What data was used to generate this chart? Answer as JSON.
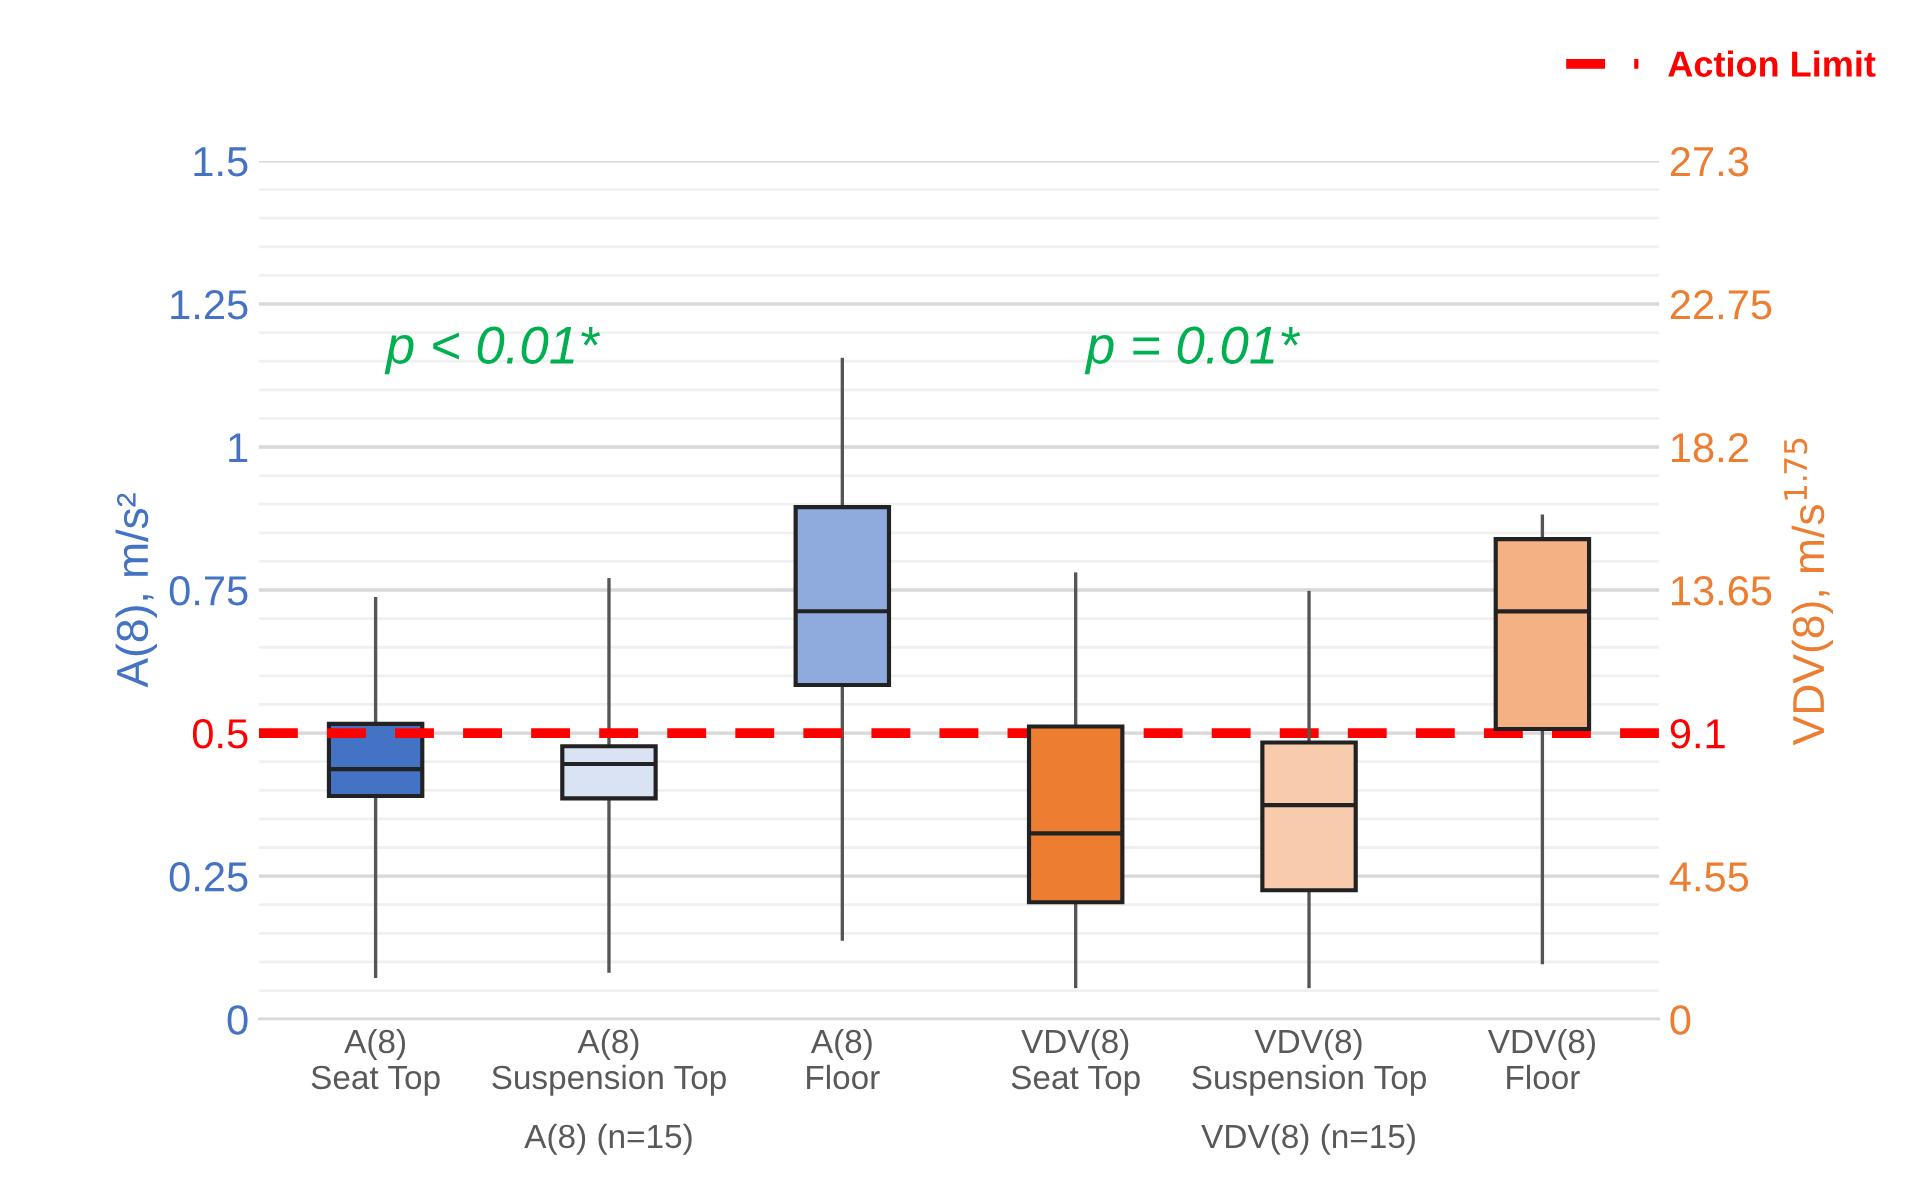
{
  "chart_data": {
    "type": "box",
    "categories": [
      "A(8)\nSeat Top",
      "A(8)\nSuspension Top",
      "A(8)\nFloor",
      "VDV(8)\nSeat Top",
      "VDV(8)\nSuspension Top",
      "VDV(8)\nFloor"
    ],
    "series": [
      {
        "axis": "y",
        "x": [
          "A(8)\nSeat Top",
          "A(8)\nSuspension Top",
          "A(8)\nFloor"
        ],
        "colors": [
          "#4472c4",
          "#dae3f3",
          "#8faadc"
        ],
        "boxes": [
          {
            "low": 0.075,
            "q1": 0.39,
            "median": 0.437,
            "q3": 0.516,
            "high": 0.735
          },
          {
            "low": 0.084,
            "q1": 0.386,
            "median": 0.446,
            "q3": 0.477,
            "high": 0.768
          },
          {
            "low": 0.14,
            "q1": 0.584,
            "median": 0.713,
            "q3": 0.895,
            "high": 1.153
          }
        ]
      },
      {
        "axis": "y2",
        "x": [
          "VDV(8)\nSeat Top",
          "VDV(8)\nSuspension Top",
          "VDV(8)\nFloor"
        ],
        "colors": [
          "#ed7d31",
          "#f8cbad",
          "#f4b183"
        ],
        "boxes": [
          {
            "low": 1.04,
            "q1": 3.72,
            "median": 5.91,
            "q3": 9.31,
            "high": 14.16
          },
          {
            "low": 1.04,
            "q1": 4.1,
            "median": 6.81,
            "q3": 8.8,
            "high": 13.57
          },
          {
            "low": 1.8,
            "q1": 9.23,
            "median": 12.97,
            "q3": 15.27,
            "high": 16.0
          }
        ]
      }
    ],
    "ylabel": "A(8), m/s²",
    "y2label": "VDV(8), m/s$^{1.75}$",
    "ylim": [
      0,
      1.5
    ],
    "yticks": [
      0,
      0.25,
      0.5,
      0.75,
      1,
      1.25,
      1.5
    ],
    "y2lim": [
      0,
      27.3
    ],
    "y2ticks": [
      0,
      4.55,
      9.1,
      13.65,
      18.2,
      22.75,
      27.3
    ],
    "ref_lines": [
      {
        "axis": "y",
        "value": 0.5,
        "label": "Action Limit",
        "color": "#ff0000",
        "line_style": "dashed"
      }
    ],
    "annotations": [
      "p < 0.01*",
      "p = 0.01*",
      "A(8) (n=15)",
      "VDV(8) (n=15)"
    ],
    "grid": "y",
    "legend": "top right"
  }
}
